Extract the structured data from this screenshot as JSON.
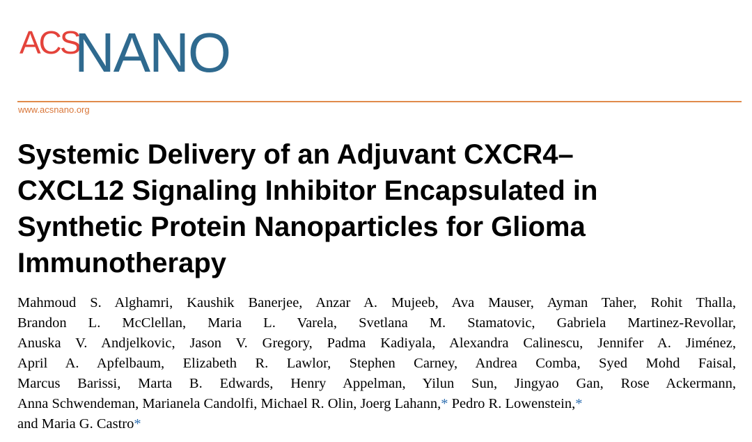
{
  "logo": {
    "prefix": "ACS",
    "name": "NANO"
  },
  "url": "www.acsnano.org",
  "title_lines": [
    "Systemic Delivery of an Adjuvant CXCR4–",
    "CXCL12 Signaling Inhibitor Encapsulated in",
    "Synthetic Protein Nanoparticles for Glioma",
    "Immunotherapy"
  ],
  "author_lines": [
    [
      {
        "text": "Mahmoud S. Alghamri, Kaushik Banerjee, Anzar A. Mujeeb, Ava Mauser, Ayman Taher, Rohit Thalla,"
      }
    ],
    [
      {
        "text": "Brandon L. McClellan, Maria L. Varela, Svetlana M. Stamatovic, Gabriela Martinez-Revollar,"
      }
    ],
    [
      {
        "text": "Anuska V. Andjelkovic, Jason V. Gregory, Padma Kadiyala, Alexandra Calinescu, Jennifer A. Jiménez,"
      }
    ],
    [
      {
        "text": "April A. Apfelbaum, Elizabeth R. Lawlor, Stephen Carney, Andrea Comba, Syed Mohd Faisal,"
      }
    ],
    [
      {
        "text": "Marcus Barissi, Marta B. Edwards, Henry Appelman, Yilun Sun, Jingyao Gan, Rose Ackermann,"
      }
    ],
    [
      {
        "text": "Anna Schwendeman, Marianela Candolfi, Michael R. Olin, Joerg Lahann,",
        "mark": "*"
      },
      {
        "text": " Pedro R. Lowenstein,",
        "mark": "*"
      }
    ],
    [
      {
        "text": "and Maria G. Castro",
        "mark": "*"
      }
    ]
  ]
}
